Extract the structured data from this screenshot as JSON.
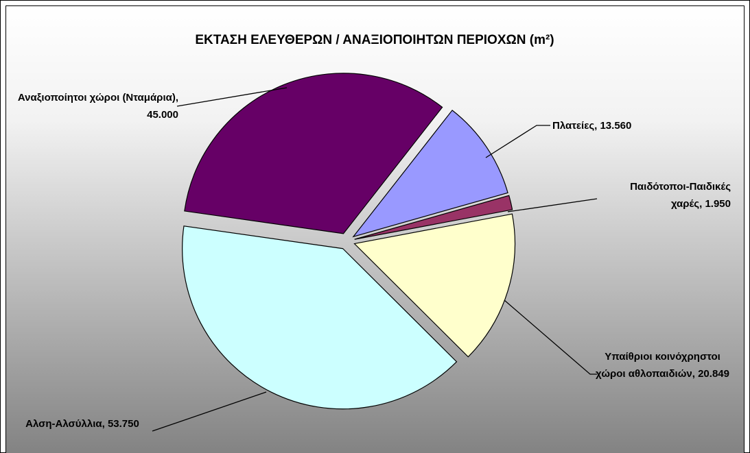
{
  "chart_data": {
    "type": "pie",
    "title": "ΕΚΤΑΣΗ ΕΛΕΥΘΕΡΩΝ / ΑΝΑΞΙΟΠΟΙΗΤΩΝ ΠΕΡΙΟΧΩΝ (m²)",
    "categories": [
      "Πλατείες",
      "Παιδότοποι-Παιδικές χαρές",
      "Υπαίθριοι κοινόχρηστοι χώροι αθλοπαιδιών",
      "Αλση-Αλσύλλια",
      "Αναξιοποίητοι χώροι (Νταμάρια)"
    ],
    "values": [
      13560,
      1950,
      20849,
      53750,
      45000
    ],
    "value_labels": [
      "13.560",
      "1.950",
      "20.849",
      "53.750",
      "45.000"
    ],
    "label_separator": ", ",
    "colors": [
      "#9999ff",
      "#993366",
      "#ffffcc",
      "#ccffff",
      "#660066"
    ]
  }
}
